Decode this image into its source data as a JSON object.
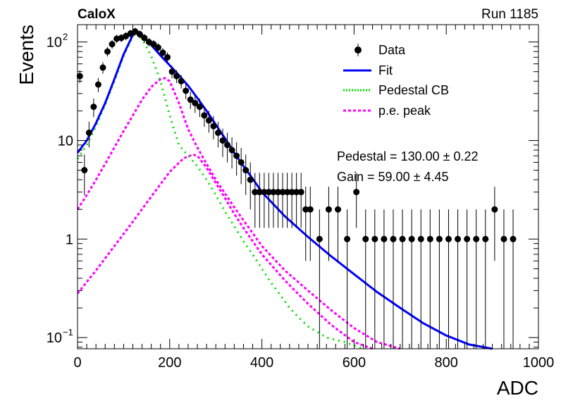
{
  "header": {
    "experiment": "CaloX",
    "run": "Run 1185"
  },
  "chart_data": {
    "type": "scatter",
    "xlabel": "ADC",
    "ylabel": "Events",
    "xlim": [
      0,
      1000
    ],
    "ylim": [
      0.077,
      150
    ],
    "yscale": "log",
    "x_ticks": [
      0,
      200,
      400,
      600,
      800,
      1000
    ],
    "y_ticks": [
      {
        "value": 100,
        "label": "10",
        "exp": "2"
      },
      {
        "value": 10,
        "label": "10",
        "exp": ""
      },
      {
        "value": 1,
        "label": "1",
        "exp": ""
      },
      {
        "value": 0.1,
        "label": "10",
        "exp": "−1"
      }
    ],
    "legend": {
      "placement": "top-right",
      "entries": [
        {
          "label": "Data",
          "style": "marker",
          "color": "#000000"
        },
        {
          "label": "Fit",
          "style": "solid",
          "color": "#0000ff"
        },
        {
          "label": "Pedestal CB",
          "style": "dotted",
          "color": "#00dd00"
        },
        {
          "label": "p.e. peak",
          "style": "dashed",
          "color": "#ff00ff"
        }
      ]
    },
    "annotations": [
      "Pedestal = 130.00 ± 0.22",
      "Gain = 59.00 ± 4.45"
    ],
    "colors": {
      "fit": "#0000ff",
      "pedestal": "#00dd00",
      "pe": "#ff00ff",
      "data": "#000000"
    },
    "fit": {
      "x": [
        0,
        20,
        40,
        60,
        80,
        100,
        120,
        130,
        140,
        160,
        180,
        200,
        220,
        240,
        260,
        280,
        300,
        320,
        340,
        360,
        380,
        400,
        450,
        500,
        550,
        600,
        650,
        700,
        750,
        800,
        850,
        900
      ],
      "y": [
        7.5,
        10,
        15,
        24,
        42,
        75,
        118,
        128,
        118,
        93,
        73,
        58,
        46,
        36,
        27,
        20,
        14.5,
        10.5,
        7.5,
        5.5,
        4.1,
        3,
        1.7,
        1.05,
        0.67,
        0.44,
        0.29,
        0.2,
        0.14,
        0.105,
        0.085,
        0.077
      ]
    },
    "pedestal": {
      "x": [
        0,
        20,
        40,
        60,
        80,
        100,
        120,
        130,
        140,
        160,
        180,
        200,
        220,
        240,
        260,
        280,
        300,
        320,
        340,
        360,
        380,
        400,
        420,
        440,
        460,
        480,
        500,
        540,
        580,
        620
      ],
      "y": [
        6.5,
        9,
        14,
        23,
        40,
        72,
        115,
        125,
        108,
        72,
        40,
        18,
        9,
        7,
        5.5,
        4,
        2.8,
        1.9,
        1.35,
        0.95,
        0.7,
        0.5,
        0.36,
        0.27,
        0.2,
        0.16,
        0.13,
        0.1,
        0.09,
        0.077
      ]
    },
    "pe_peaks": [
      {
        "x": [
          0,
          20,
          40,
          60,
          80,
          100,
          120,
          140,
          160,
          180,
          190,
          200,
          220,
          240,
          260,
          280,
          300,
          320,
          340,
          360,
          380,
          400,
          450,
          500,
          550,
          600,
          650,
          700
        ],
        "y": [
          2.0,
          2.8,
          4.0,
          5.8,
          8.5,
          12.5,
          18,
          26,
          35,
          42,
          43,
          40,
          24,
          13,
          8.5,
          5.8,
          4.0,
          2.9,
          2.1,
          1.55,
          1.15,
          0.85,
          0.48,
          0.3,
          0.19,
          0.125,
          0.09,
          0.077
        ]
      },
      {
        "x": [
          0,
          40,
          80,
          120,
          160,
          200,
          230,
          250,
          260,
          280,
          300,
          320,
          340,
          360,
          380,
          400,
          450,
          500,
          550,
          600,
          640
        ],
        "y": [
          0.28,
          0.48,
          0.85,
          1.5,
          2.7,
          4.8,
          6.6,
          7.2,
          7.0,
          5.3,
          3.7,
          2.6,
          1.8,
          1.3,
          0.95,
          0.7,
          0.38,
          0.22,
          0.135,
          0.09,
          0.077
        ]
      }
    ],
    "data_points": {
      "x": [
        5,
        15,
        25,
        35,
        45,
        55,
        65,
        75,
        85,
        95,
        105,
        115,
        125,
        135,
        145,
        155,
        165,
        175,
        185,
        195,
        205,
        215,
        225,
        235,
        245,
        255,
        265,
        275,
        285,
        295,
        305,
        315,
        325,
        335,
        345,
        355,
        365,
        375,
        385,
        395,
        405,
        415,
        425,
        435,
        445,
        455,
        465,
        475,
        485,
        495,
        505,
        525,
        545,
        565,
        585,
        605,
        625,
        645,
        665,
        685,
        705,
        725,
        745,
        765,
        785,
        805,
        825,
        845,
        865,
        885,
        905,
        925,
        945
      ],
      "y": [
        45,
        5,
        12,
        22,
        37,
        55,
        80,
        95,
        108,
        110,
        115,
        122,
        128,
        120,
        110,
        100,
        95,
        88,
        78,
        70,
        50,
        45,
        40,
        32,
        26,
        24,
        22,
        18,
        16,
        14,
        12,
        10,
        9,
        8,
        7,
        6,
        5,
        4,
        3,
        3,
        3,
        3,
        3,
        3,
        3,
        3,
        3,
        3,
        3,
        2,
        2,
        1,
        2,
        2,
        1,
        3,
        1,
        1,
        1,
        1,
        1,
        1,
        1,
        1,
        1,
        1,
        1,
        1,
        1,
        1,
        2,
        1,
        1
      ],
      "err_lo": [
        6.7,
        2.2,
        3.5,
        4.7,
        6.1,
        7.4,
        8.9,
        9.7,
        10.4,
        10.5,
        10.7,
        11,
        11.3,
        11,
        10.5,
        10,
        9.7,
        9.4,
        8.8,
        8.4,
        7.1,
        6.7,
        6.3,
        5.7,
        5.1,
        4.9,
        4.7,
        4.2,
        4,
        3.7,
        3.5,
        3.2,
        3,
        2.8,
        2.6,
        2.4,
        2.2,
        2,
        1.7,
        1.7,
        1.7,
        1.7,
        1.7,
        1.7,
        1.7,
        1.7,
        1.7,
        1.7,
        1.7,
        1.4,
        1.4,
        0.99,
        1.4,
        1.4,
        0.99,
        1.7,
        0.99,
        0.99,
        0.99,
        0.99,
        0.99,
        0.99,
        0.99,
        0.99,
        0.99,
        0.99,
        0.99,
        0.99,
        0.99,
        0.99,
        1.4,
        0.99,
        0.99
      ],
      "err_hi": [
        6.7,
        2.2,
        3.5,
        4.7,
        6.1,
        7.4,
        8.9,
        9.7,
        10.4,
        10.5,
        10.7,
        11,
        11.3,
        11,
        10.5,
        10,
        9.7,
        9.4,
        8.8,
        8.4,
        7.1,
        6.7,
        6.3,
        5.7,
        5.1,
        4.9,
        4.7,
        4.2,
        4,
        3.7,
        3.5,
        3.2,
        3,
        2.8,
        2.6,
        2.4,
        2.2,
        2,
        1.7,
        1.7,
        1.7,
        1.7,
        1.7,
        1.7,
        1.7,
        1.7,
        1.7,
        1.7,
        1.7,
        1.4,
        1.4,
        1,
        1.4,
        1.4,
        1,
        1.7,
        1,
        1,
        1,
        1,
        1,
        1,
        1,
        1,
        1,
        1,
        1,
        1,
        1,
        1,
        1.4,
        1,
        1
      ]
    }
  }
}
